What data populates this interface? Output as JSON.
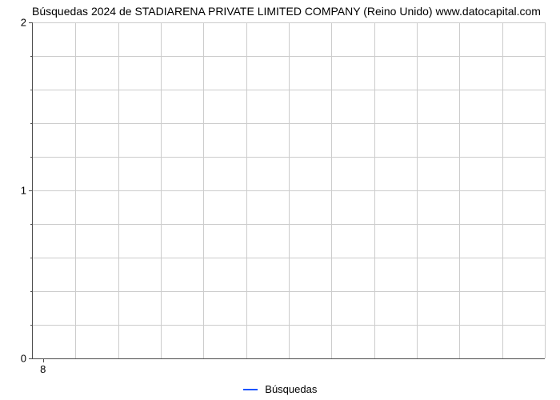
{
  "chart": {
    "type": "line",
    "title": "Búsquedas 2024 de STADIARENA PRIVATE LIMITED COMPANY (Reino Unido) www.datocapital.com",
    "title_fontsize": 14,
    "title_color": "#000000",
    "background_color": "#ffffff",
    "plot_background_color": "#ffffff",
    "grid_color": "#cccccc",
    "axis_color": "#4d4d4d",
    "y": {
      "min": 0,
      "max": 2,
      "major_ticks": [
        0,
        1,
        2
      ],
      "minor_ticks": [
        0.2,
        0.4,
        0.6,
        0.8,
        1.2,
        1.4,
        1.6,
        1.8
      ],
      "gridlines": [
        0.2,
        0.4,
        0.6,
        0.8,
        1.0,
        1.2,
        1.4,
        1.6,
        1.8,
        2.0
      ]
    },
    "x": {
      "tick_label": "8",
      "tick_fraction": 0.02,
      "vgrid_count": 12
    },
    "legend": {
      "label": "Búsquedas",
      "color": "#1a53ff"
    },
    "series": []
  }
}
